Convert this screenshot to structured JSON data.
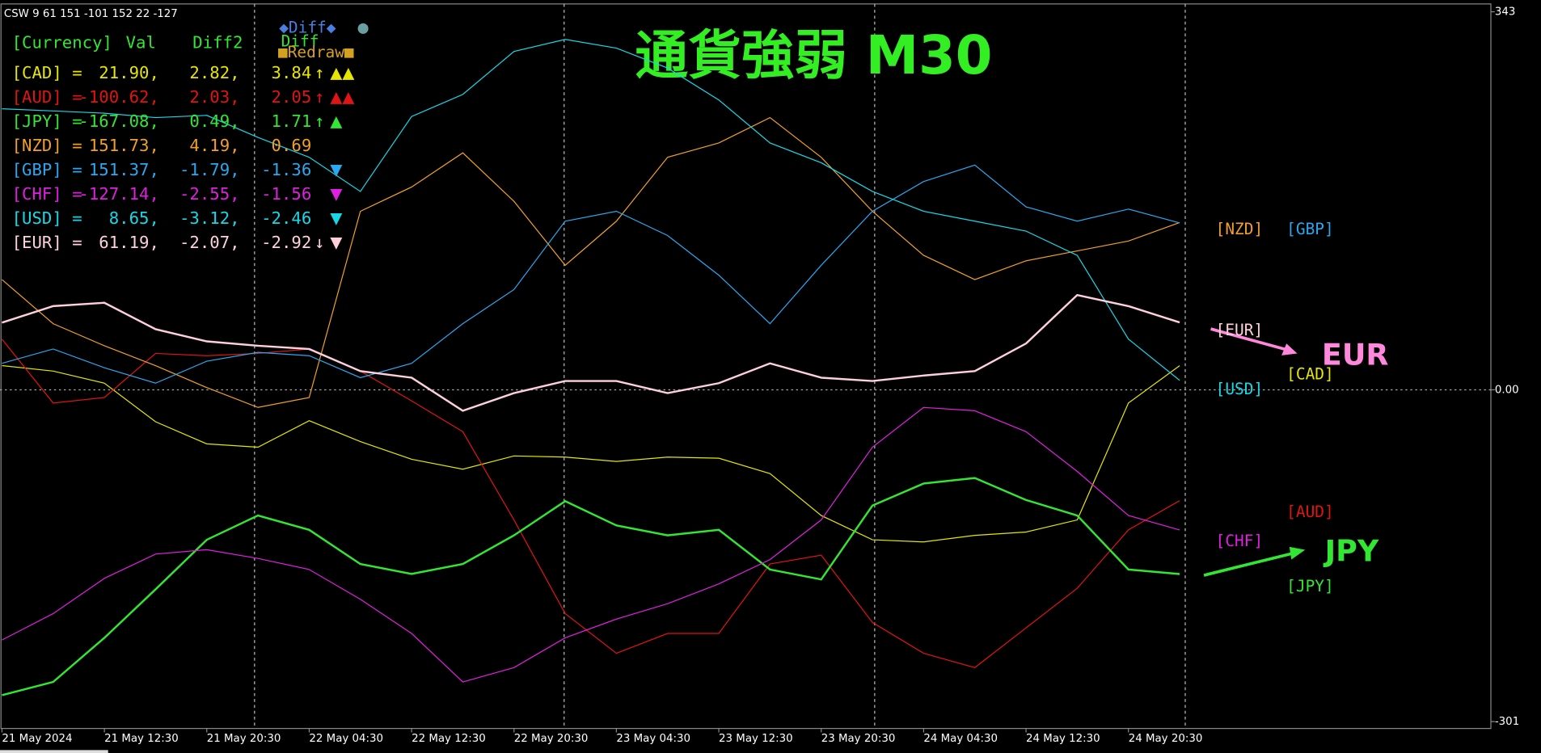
{
  "chart_data": {
    "type": "line",
    "title": "通貨強弱 M30",
    "header": "CSW 9 61 151 -101 152 22 -127",
    "categories": [
      "21 May 2024",
      null,
      "21 May 12:30",
      null,
      "21 May 20:30",
      null,
      "22 May 04:30",
      null,
      "22 May 12:30",
      null,
      "22 May 20:30",
      null,
      "23 May 04:30",
      null,
      "23 May 12:30",
      null,
      "23 May 20:30",
      null,
      "24 May 04:30",
      null,
      "24 May 12:30",
      null,
      "24 May 20:30",
      null
    ],
    "ylim": [
      -301,
      343
    ],
    "yticks": [
      343,
      {
        "value": 0,
        "label": "0.00"
      },
      -301
    ],
    "grid": true,
    "series": [
      {
        "name": "[CAD]",
        "color": "#e6e600",
        "values": [
          22,
          17,
          6,
          -29,
          -49,
          -52,
          -28,
          -47,
          -63,
          -72,
          -60,
          -61,
          -65,
          -61,
          -62,
          -76,
          -114,
          -136,
          -138,
          -132,
          -129,
          -118,
          -12,
          21.9
        ]
      },
      {
        "name": "[AUD]",
        "color": "#e01414",
        "values": [
          46,
          -12,
          -7,
          33,
          31,
          33,
          37,
          17,
          -10,
          -38,
          -118,
          -203,
          -239,
          -221,
          -221,
          -158,
          -150,
          -211,
          -239,
          -252,
          -216,
          -180,
          -127,
          -100.62
        ]
      },
      {
        "name": "[JPY]",
        "color": "#33e633",
        "values": [
          -277,
          -265,
          -225,
          -181,
          -136,
          -114,
          -127,
          -158,
          -167,
          -158,
          -132,
          -101,
          -123,
          -132,
          -127,
          -163,
          -172,
          -105,
          -85,
          -80,
          -100,
          -114,
          -163,
          -167.08
        ]
      },
      {
        "name": "[NZD]",
        "color": "#f0a028",
        "values": [
          100,
          60,
          40,
          22,
          2,
          -16,
          -7,
          162,
          184,
          215,
          171,
          113,
          153,
          211,
          224,
          247,
          211,
          162,
          122,
          100,
          117,
          126,
          135,
          151.73
        ]
      },
      {
        "name": "[GBP]",
        "color": "#2aa8f0",
        "values": [
          24,
          37,
          20,
          6,
          26,
          34,
          31,
          11,
          24,
          60,
          91,
          153,
          162,
          140,
          104,
          60,
          113,
          162,
          189,
          204,
          166,
          153,
          164,
          151.37
        ]
      },
      {
        "name": "[CHF]",
        "color": "#e020e0",
        "values": [
          -227,
          -203,
          -171,
          -149,
          -145,
          -153,
          -163,
          -190,
          -221,
          -265,
          -252,
          -225,
          -208,
          -194,
          -176,
          -154,
          -118,
          -52,
          -16,
          -19,
          -38,
          -74,
          -114,
          -127.14
        ]
      },
      {
        "name": "[USD]",
        "color": "#18d8e8",
        "values": [
          255,
          253,
          251,
          247,
          249,
          229,
          211,
          180,
          248,
          268,
          307,
          318,
          310,
          292,
          263,
          224,
          206,
          180,
          162,
          153,
          144,
          122,
          46,
          8.65
        ]
      },
      {
        "name": "[EUR]",
        "color": "#ffd0dc",
        "values": [
          61,
          76,
          79,
          55,
          44,
          40,
          37,
          17,
          11,
          -19,
          -3,
          8,
          8,
          -3,
          6,
          24,
          11,
          8,
          13,
          17,
          42,
          86,
          76,
          61.19
        ]
      }
    ],
    "annotations": [
      "EUR",
      "JPY"
    ]
  },
  "panel": {
    "header": [
      "[Currency]",
      "Val",
      "Diff2",
      "Diff"
    ],
    "rows": [
      {
        "cells": [
          "[CAD] =",
          "21.90,",
          "2.82,",
          "3.84"
        ],
        "arrow": "↑",
        "marks": "▲▲"
      },
      {
        "cells": [
          "[AUD] =",
          "-100.62,",
          "2.03,",
          "2.05"
        ],
        "arrow": "↑",
        "marks": "▲▲"
      },
      {
        "cells": [
          "[JPY] =",
          "-167.08,",
          "0.49,",
          "1.71"
        ],
        "arrow": "↑",
        "marks": "▲"
      },
      {
        "cells": [
          "[NZD] =",
          "151.73,",
          "4.19,",
          "0.69"
        ]
      },
      {
        "cells": [
          "[GBP] =",
          "151.37,",
          "-1.79,",
          "-1.36"
        ],
        "marks": "▼"
      },
      {
        "cells": [
          "[CHF] =",
          "-127.14,",
          "-2.55,",
          "-1.56"
        ],
        "marks": "▼"
      },
      {
        "cells": [
          "[USD] =",
          "8.65,",
          "-3.12,",
          "-2.46"
        ],
        "marks": "▼"
      },
      {
        "cells": [
          "[EUR] =",
          "61.19,",
          "-2.07,",
          "-2.92"
        ],
        "arrow": "↓",
        "marks": "▼"
      }
    ],
    "buttons": [
      "◆Diff◆",
      "●",
      "Diff",
      "■Redraw■"
    ]
  }
}
